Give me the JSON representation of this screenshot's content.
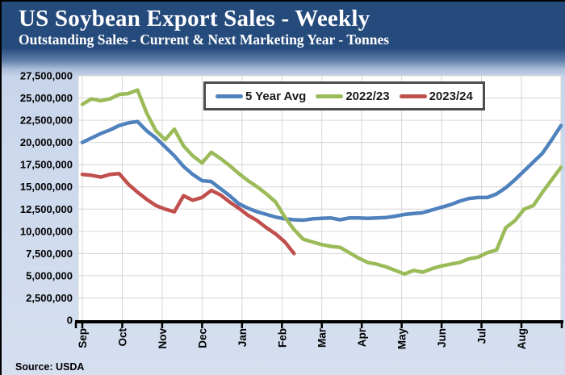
{
  "header": {
    "title": "US Soybean Export Sales - Weekly",
    "subtitle": "Outstanding Sales - Current & Next Marketing Year - Tonnes"
  },
  "source": "Source: USDA",
  "legend": {
    "position": "top-center",
    "items": [
      {
        "label": "5 Year Avg",
        "color": "#4F81BD"
      },
      {
        "label": "2022/23",
        "color": "#9BBB59"
      },
      {
        "label": "2023/24",
        "color": "#C0504D"
      }
    ]
  },
  "chart_data": {
    "type": "line",
    "title": "US Soybean Export Sales - Weekly",
    "subtitle": "Outstanding Sales - Current & Next Marketing Year - Tonnes",
    "ylabel": "Tonnes",
    "unit_note": "series values are in millions of tonnes, weekly observations across the Sep-Aug marketing year",
    "ylim": [
      0,
      27500000
    ],
    "y_tick_step": 2500000,
    "y_tick_labels": [
      "27,500,000",
      "25,000,000",
      "22,500,000",
      "20,000,000",
      "17,500,000",
      "15,000,000",
      "12,500,000",
      "10,000,000",
      "7,500,000",
      "5,000,000",
      "2,500,000",
      "0"
    ],
    "x_categories": [
      "Sep",
      "Oct",
      "Nov",
      "Dec",
      "Jan",
      "Feb",
      "Mar",
      "Apr",
      "May",
      "Jun",
      "Jul",
      "Aug"
    ],
    "grid": true,
    "legend_position": "top-center",
    "series": [
      {
        "name": "5 Year Avg",
        "color": "#4F81BD",
        "values_million": [
          20.0,
          20.5,
          21.0,
          21.4,
          21.9,
          22.2,
          22.35,
          21.3,
          20.5,
          19.5,
          18.5,
          17.3,
          16.4,
          15.7,
          15.6,
          14.8,
          14.0,
          13.1,
          12.6,
          12.2,
          11.9,
          11.6,
          11.4,
          11.3,
          11.25,
          11.4,
          11.45,
          11.5,
          11.3,
          11.5,
          11.5,
          11.45,
          11.5,
          11.55,
          11.7,
          11.9,
          12.0,
          12.1,
          12.4,
          12.7,
          13.0,
          13.4,
          13.7,
          13.8,
          13.8,
          14.2,
          14.9,
          15.8,
          16.8,
          17.8,
          18.8,
          20.3,
          21.9
        ]
      },
      {
        "name": "2022/23",
        "color": "#9BBB59",
        "values_million": [
          24.3,
          24.9,
          24.7,
          24.9,
          25.4,
          25.5,
          25.9,
          23.3,
          21.3,
          20.3,
          21.5,
          19.6,
          18.5,
          17.7,
          18.9,
          18.2,
          17.4,
          16.5,
          15.7,
          15.0,
          14.2,
          13.3,
          11.6,
          10.2,
          9.1,
          8.8,
          8.5,
          8.3,
          8.2,
          7.6,
          7.0,
          6.5,
          6.3,
          6.0,
          5.6,
          5.2,
          5.6,
          5.4,
          5.8,
          6.1,
          6.3,
          6.5,
          6.9,
          7.1,
          7.6,
          7.9,
          10.4,
          11.2,
          12.5,
          12.9,
          14.4,
          15.8,
          17.2
        ]
      },
      {
        "name": "2023/24",
        "color": "#C0504D",
        "values_million": [
          16.4,
          16.3,
          16.1,
          16.4,
          16.5,
          15.3,
          14.4,
          13.6,
          12.9,
          12.5,
          12.2,
          14.0,
          13.5,
          13.8,
          14.6,
          14.1,
          13.3,
          12.6,
          11.8,
          11.2,
          10.4,
          9.7,
          8.8,
          7.5
        ]
      }
    ]
  }
}
